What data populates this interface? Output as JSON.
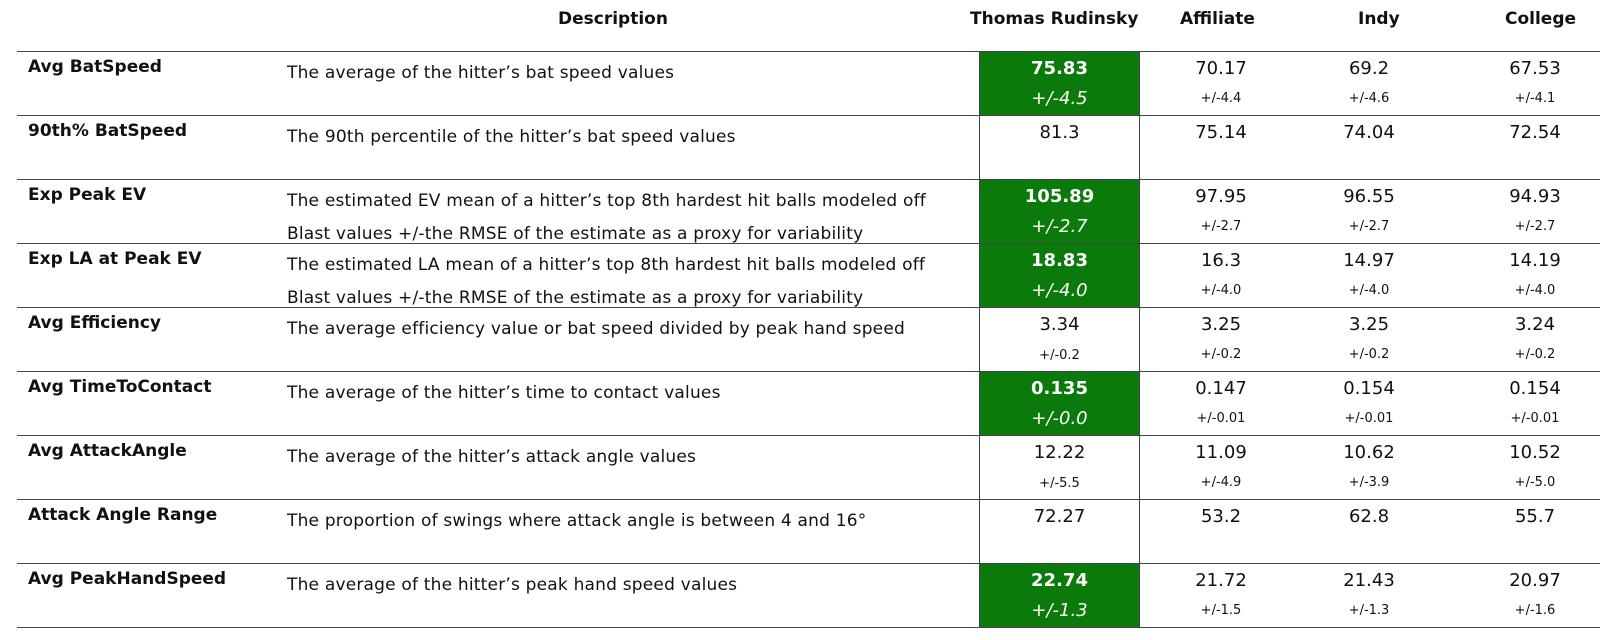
{
  "headers": {
    "description": "Description",
    "player": "Thomas Rudinsky",
    "affiliate": "Affiliate",
    "indy": "Indy",
    "college": "College"
  },
  "colors": {
    "highlight": "#0a7a0a"
  },
  "rows": [
    {
      "metric": "Avg BatSpeed",
      "description": "The average of the hitter’s bat speed values",
      "player": "75.83",
      "player_sd": "+/-4.5",
      "highlight": true,
      "affiliate": "70.17",
      "affiliate_sd": "+/-4.4",
      "indy": "69.2",
      "indy_sd": "+/-4.6",
      "college": "67.53",
      "college_sd": "+/-4.1"
    },
    {
      "metric": "90th% BatSpeed",
      "description": "The 90th percentile of the hitter’s bat speed values",
      "player": "81.3",
      "player_sd": "",
      "highlight": false,
      "affiliate": "75.14",
      "affiliate_sd": "",
      "indy": "74.04",
      "indy_sd": "",
      "college": "72.54",
      "college_sd": ""
    },
    {
      "metric": "Exp Peak EV",
      "description": "The estimated EV mean of a hitter’s top 8th hardest hit balls modeled off Blast values +/-the RMSE of the estimate as a proxy for variability",
      "player": "105.89",
      "player_sd": "+/-2.7",
      "highlight": true,
      "affiliate": "97.95",
      "affiliate_sd": "+/-2.7",
      "indy": "96.55",
      "indy_sd": "+/-2.7",
      "college": "94.93",
      "college_sd": "+/-2.7"
    },
    {
      "metric": "Exp LA at Peak EV",
      "description": "The estimated LA mean of a hitter’s top 8th hardest hit balls modeled off Blast values +/-the RMSE of the estimate as a proxy for variability",
      "player": "18.83",
      "player_sd": "+/-4.0",
      "highlight": true,
      "affiliate": "16.3",
      "affiliate_sd": "+/-4.0",
      "indy": "14.97",
      "indy_sd": "+/-4.0",
      "college": "14.19",
      "college_sd": "+/-4.0"
    },
    {
      "metric": "Avg Efficiency",
      "description": "The average efficiency value or bat speed divided by peak hand speed",
      "player": "3.34",
      "player_sd": "+/-0.2",
      "highlight": false,
      "affiliate": "3.25",
      "affiliate_sd": "+/-0.2",
      "indy": "3.25",
      "indy_sd": "+/-0.2",
      "college": "3.24",
      "college_sd": "+/-0.2"
    },
    {
      "metric": "Avg TimeToContact",
      "description": "The average of the hitter’s time to contact values",
      "player": "0.135",
      "player_sd": "+/-0.0",
      "highlight": true,
      "affiliate": "0.147",
      "affiliate_sd": "+/-0.01",
      "indy": "0.154",
      "indy_sd": "+/-0.01",
      "college": "0.154",
      "college_sd": "+/-0.01"
    },
    {
      "metric": "Avg AttackAngle",
      "description": "The average of the hitter’s attack angle values",
      "player": "12.22",
      "player_sd": "+/-5.5",
      "highlight": false,
      "affiliate": "11.09",
      "affiliate_sd": "+/-4.9",
      "indy": "10.62",
      "indy_sd": "+/-3.9",
      "college": "10.52",
      "college_sd": "+/-5.0"
    },
    {
      "metric": "Attack Angle Range",
      "description": "The proportion of swings where attack angle is between 4 and 16°",
      "player": "72.27",
      "player_sd": "",
      "highlight": false,
      "affiliate": "53.2",
      "affiliate_sd": "",
      "indy": "62.8",
      "indy_sd": "",
      "college": "55.7",
      "college_sd": ""
    },
    {
      "metric": "Avg PeakHandSpeed",
      "description": "The average of the hitter’s peak hand speed values",
      "player": "22.74",
      "player_sd": "+/-1.3",
      "highlight": true,
      "affiliate": "21.72",
      "affiliate_sd": "+/-1.5",
      "indy": "21.43",
      "indy_sd": "+/-1.3",
      "college": "20.97",
      "college_sd": "+/-1.6"
    }
  ]
}
